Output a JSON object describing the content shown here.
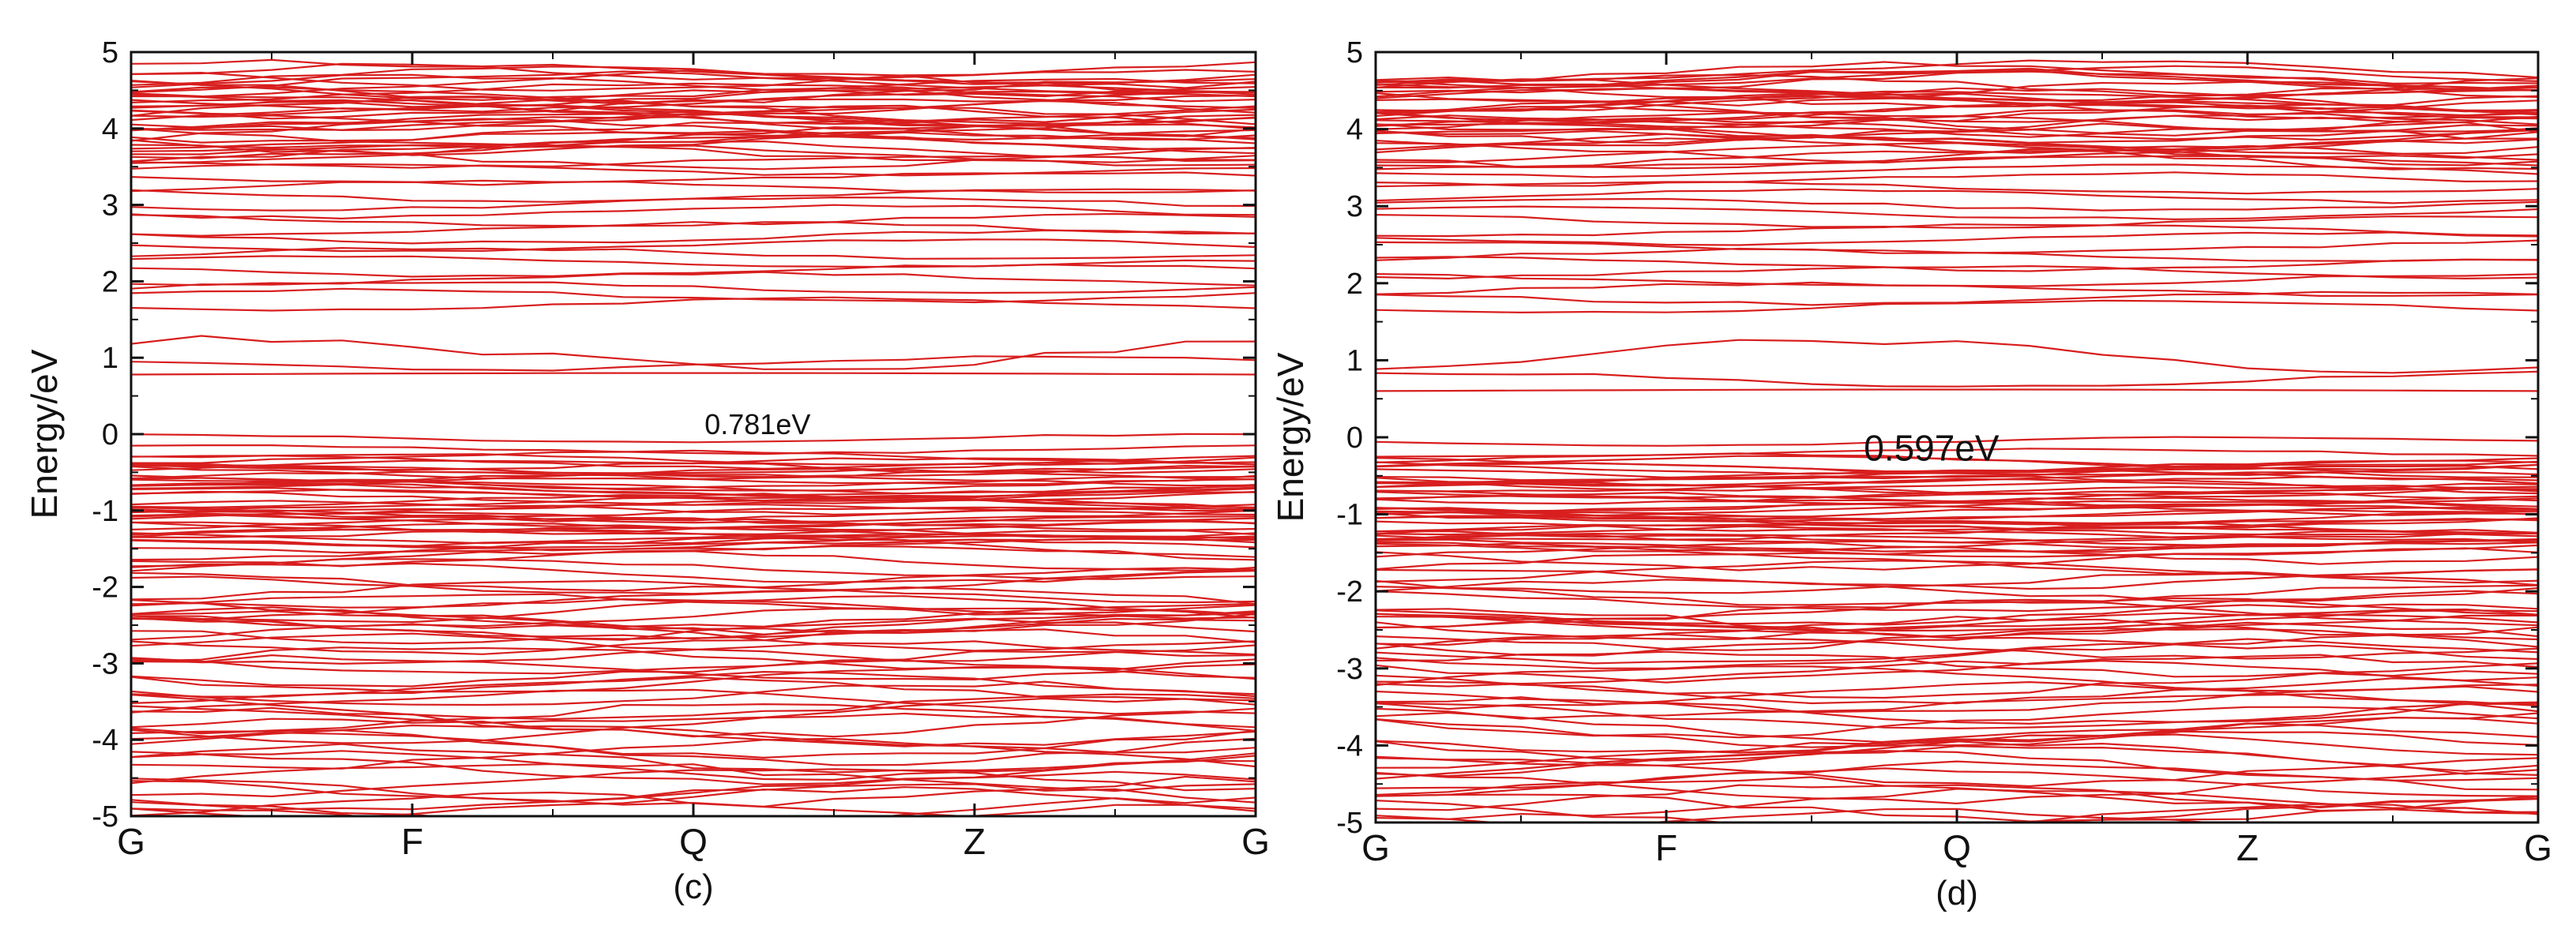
{
  "chart_data": [
    {
      "type": "line",
      "caption": "(c)",
      "ylabel": "Energy/eV",
      "xlabel": "",
      "ylim": [
        -5,
        5
      ],
      "yticks": [
        "-5",
        "-4",
        "-3",
        "-2",
        "-1",
        "0",
        "1",
        "2",
        "3",
        "4",
        "5"
      ],
      "kpoints": [
        "G",
        "F",
        "Q",
        "Z",
        "G"
      ],
      "annotation": "0.781eV",
      "band_color": "#d81e1e",
      "band_count": 150
    },
    {
      "type": "line",
      "caption": "(d)",
      "ylabel": "Energy/eV",
      "xlabel": "",
      "ylim": [
        -5,
        5
      ],
      "yticks": [
        "-5",
        "-4",
        "-3",
        "-2",
        "-1",
        "0",
        "1",
        "2",
        "3",
        "4",
        "5"
      ],
      "kpoints": [
        "G",
        "F",
        "Q",
        "Z",
        "G"
      ],
      "annotation": "0.597eV",
      "band_color": "#d81e1e",
      "band_count": 150
    }
  ]
}
